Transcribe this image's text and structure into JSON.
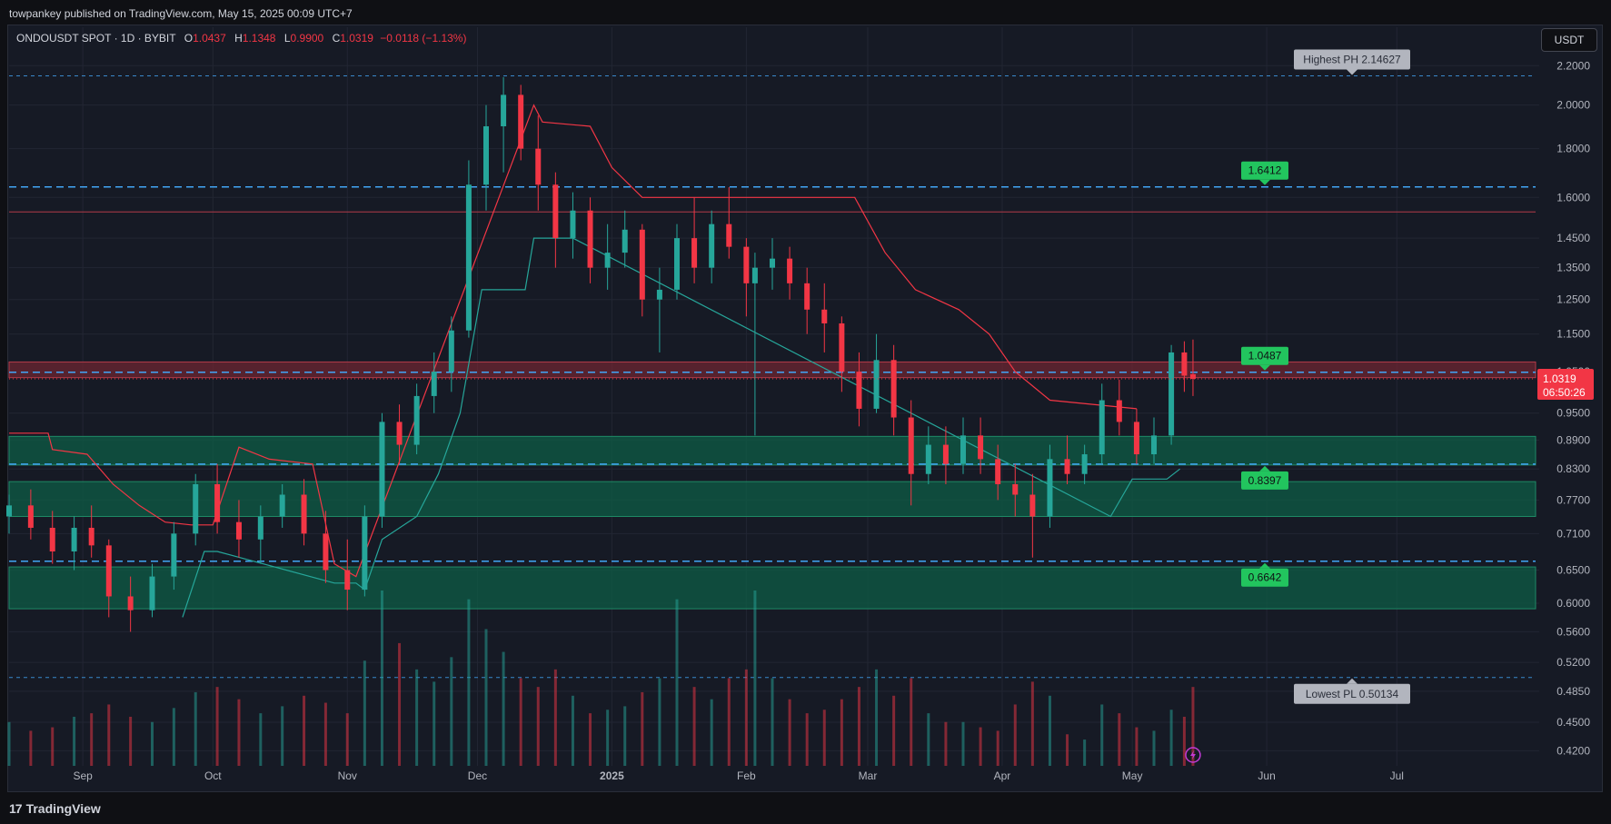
{
  "publisher_text": "towpankey published on TradingView.com, May 15, 2025 00:09 UTC+7",
  "legend": {
    "symbol": "ONDOUSDT SPOT · 1D · BYBIT",
    "o_label": "O",
    "o_value": "1.0437",
    "h_label": "H",
    "h_value": "1.1348",
    "l_label": "L",
    "l_value": "0.9900",
    "c_label": "C",
    "c_value": "1.0319",
    "change": "−0.0118 (−1.13%)"
  },
  "currency_button": "USDT",
  "footer": {
    "logo_mark": "17",
    "brand": "TradingView"
  },
  "colors": {
    "background": "#161a25",
    "up": "#26a69a",
    "down": "#f23645",
    "level_line": "#42a5f5",
    "green_zone": "#0d5c45",
    "red_zone": "#7a2632",
    "green_label": "#22c55e",
    "price_tag": "#f23645"
  },
  "icons": {
    "flash": "lightning-icon"
  },
  "chart_data": {
    "type": "candlestick",
    "symbol": "ONDOUSDT",
    "y_scale": "log",
    "y_ticks": [
      "2.2000",
      "2.0000",
      "1.8000",
      "1.6000",
      "1.4500",
      "1.3500",
      "1.2500",
      "1.1500",
      "1.0500",
      "0.9500",
      "0.8900",
      "0.8300",
      "0.7700",
      "0.7100",
      "0.6500",
      "0.6000",
      "0.5600",
      "0.5200",
      "0.4850",
      "0.4500",
      "0.4200"
    ],
    "x_ticks": [
      {
        "label": "Sep",
        "date": "2024-09-01"
      },
      {
        "label": "Oct",
        "date": "2024-10-01"
      },
      {
        "label": "Nov",
        "date": "2024-11-01"
      },
      {
        "label": "Dec",
        "date": "2024-12-01"
      },
      {
        "label": "2025",
        "date": "2025-01-01"
      },
      {
        "label": "Feb",
        "date": "2025-02-01"
      },
      {
        "label": "Mar",
        "date": "2025-03-01"
      },
      {
        "label": "Apr",
        "date": "2025-04-01"
      },
      {
        "label": "May",
        "date": "2025-05-01"
      },
      {
        "label": "Jun",
        "date": "2025-06-01"
      },
      {
        "label": "Jul",
        "date": "2025-07-01"
      }
    ],
    "x_range": [
      "2024-08-15",
      "2025-08-02"
    ],
    "y_range": [
      0.405,
      2.26
    ],
    "ohlc": [
      [
        "2024-08-15",
        0.74,
        0.78,
        0.71,
        0.76
      ],
      [
        "2024-08-20",
        0.76,
        0.79,
        0.7,
        0.72
      ],
      [
        "2024-08-25",
        0.72,
        0.75,
        0.66,
        0.68
      ],
      [
        "2024-08-30",
        0.68,
        0.74,
        0.65,
        0.72
      ],
      [
        "2024-09-03",
        0.72,
        0.76,
        0.67,
        0.69
      ],
      [
        "2024-09-07",
        0.69,
        0.7,
        0.58,
        0.61
      ],
      [
        "2024-09-12",
        0.61,
        0.64,
        0.56,
        0.59
      ],
      [
        "2024-09-17",
        0.59,
        0.66,
        0.58,
        0.64
      ],
      [
        "2024-09-22",
        0.64,
        0.73,
        0.62,
        0.71
      ],
      [
        "2024-09-27",
        0.71,
        0.82,
        0.69,
        0.8
      ],
      [
        "2024-10-02",
        0.8,
        0.84,
        0.71,
        0.73
      ],
      [
        "2024-10-07",
        0.73,
        0.77,
        0.67,
        0.7
      ],
      [
        "2024-10-12",
        0.7,
        0.76,
        0.66,
        0.74
      ],
      [
        "2024-10-17",
        0.74,
        0.8,
        0.72,
        0.78
      ],
      [
        "2024-10-22",
        0.78,
        0.81,
        0.69,
        0.71
      ],
      [
        "2024-10-27",
        0.71,
        0.75,
        0.63,
        0.65
      ],
      [
        "2024-11-01",
        0.65,
        0.7,
        0.59,
        0.62
      ],
      [
        "2024-11-05",
        0.62,
        0.76,
        0.61,
        0.74
      ],
      [
        "2024-11-09",
        0.74,
        0.95,
        0.72,
        0.93
      ],
      [
        "2024-11-13",
        0.93,
        0.97,
        0.84,
        0.88
      ],
      [
        "2024-11-17",
        0.88,
        1.02,
        0.86,
        0.99
      ],
      [
        "2024-11-21",
        0.99,
        1.1,
        0.95,
        1.05
      ],
      [
        "2024-11-25",
        1.05,
        1.2,
        1.0,
        1.16
      ],
      [
        "2024-11-29",
        1.16,
        1.75,
        1.14,
        1.65
      ],
      [
        "2024-12-03",
        1.65,
        2.0,
        1.55,
        1.9
      ],
      [
        "2024-12-07",
        1.9,
        2.14,
        1.7,
        2.05
      ],
      [
        "2024-12-11",
        2.05,
        2.1,
        1.75,
        1.8
      ],
      [
        "2024-12-15",
        1.8,
        1.95,
        1.55,
        1.65
      ],
      [
        "2024-12-19",
        1.65,
        1.7,
        1.35,
        1.45
      ],
      [
        "2024-12-23",
        1.45,
        1.62,
        1.38,
        1.55
      ],
      [
        "2024-12-27",
        1.55,
        1.6,
        1.3,
        1.35
      ],
      [
        "2024-12-31",
        1.35,
        1.5,
        1.28,
        1.4
      ],
      [
        "2025-01-04",
        1.4,
        1.55,
        1.35,
        1.48
      ],
      [
        "2025-01-08",
        1.48,
        1.5,
        1.2,
        1.25
      ],
      [
        "2025-01-12",
        1.25,
        1.35,
        1.1,
        1.28
      ],
      [
        "2025-01-16",
        1.28,
        1.5,
        1.25,
        1.45
      ],
      [
        "2025-01-20",
        1.45,
        1.6,
        1.3,
        1.35
      ],
      [
        "2025-01-24",
        1.35,
        1.55,
        1.3,
        1.5
      ],
      [
        "2025-01-28",
        1.5,
        1.64,
        1.38,
        1.42
      ],
      [
        "2025-02-01",
        1.42,
        1.45,
        1.2,
        1.3
      ],
      [
        "2025-02-03",
        1.3,
        1.4,
        0.9,
        1.35
      ],
      [
        "2025-02-07",
        1.35,
        1.45,
        1.28,
        1.38
      ],
      [
        "2025-02-11",
        1.38,
        1.42,
        1.25,
        1.3
      ],
      [
        "2025-02-15",
        1.3,
        1.35,
        1.15,
        1.22
      ],
      [
        "2025-02-19",
        1.22,
        1.3,
        1.1,
        1.18
      ],
      [
        "2025-02-23",
        1.18,
        1.2,
        1.0,
        1.05
      ],
      [
        "2025-02-27",
        1.05,
        1.1,
        0.92,
        0.96
      ],
      [
        "2025-03-03",
        0.96,
        1.15,
        0.95,
        1.08
      ],
      [
        "2025-03-07",
        1.08,
        1.12,
        0.9,
        0.94
      ],
      [
        "2025-03-11",
        0.94,
        0.98,
        0.76,
        0.82
      ],
      [
        "2025-03-15",
        0.82,
        0.92,
        0.8,
        0.88
      ],
      [
        "2025-03-19",
        0.88,
        0.92,
        0.8,
        0.84
      ],
      [
        "2025-03-23",
        0.84,
        0.94,
        0.82,
        0.9
      ],
      [
        "2025-03-27",
        0.9,
        0.94,
        0.82,
        0.85
      ],
      [
        "2025-03-31",
        0.85,
        0.88,
        0.77,
        0.8
      ],
      [
        "2025-04-04",
        0.8,
        0.84,
        0.74,
        0.78
      ],
      [
        "2025-04-08",
        0.78,
        0.82,
        0.67,
        0.74
      ],
      [
        "2025-04-12",
        0.74,
        0.88,
        0.72,
        0.85
      ],
      [
        "2025-04-16",
        0.85,
        0.9,
        0.8,
        0.82
      ],
      [
        "2025-04-20",
        0.82,
        0.88,
        0.8,
        0.86
      ],
      [
        "2025-04-24",
        0.86,
        1.02,
        0.84,
        0.98
      ],
      [
        "2025-04-28",
        0.98,
        1.03,
        0.9,
        0.93
      ],
      [
        "2025-05-02",
        0.93,
        0.96,
        0.84,
        0.86
      ],
      [
        "2025-05-06",
        0.86,
        0.94,
        0.84,
        0.9
      ],
      [
        "2025-05-10",
        0.9,
        1.12,
        0.88,
        1.1
      ],
      [
        "2025-05-13",
        1.1,
        1.13,
        1.0,
        1.04
      ],
      [
        "2025-05-15",
        1.0437,
        1.1348,
        0.99,
        1.0319
      ]
    ],
    "volume": [
      [
        "2024-08-15",
        0.25
      ],
      [
        "2024-08-20",
        0.2
      ],
      [
        "2024-08-25",
        0.22
      ],
      [
        "2024-08-30",
        0.28
      ],
      [
        "2024-09-03",
        0.3
      ],
      [
        "2024-09-07",
        0.35
      ],
      [
        "2024-09-12",
        0.28
      ],
      [
        "2024-09-17",
        0.25
      ],
      [
        "2024-09-22",
        0.33
      ],
      [
        "2024-09-27",
        0.42
      ],
      [
        "2024-10-02",
        0.45
      ],
      [
        "2024-10-07",
        0.38
      ],
      [
        "2024-10-12",
        0.3
      ],
      [
        "2024-10-17",
        0.34
      ],
      [
        "2024-10-22",
        0.4
      ],
      [
        "2024-10-27",
        0.36
      ],
      [
        "2024-11-01",
        0.3
      ],
      [
        "2024-11-05",
        0.6
      ],
      [
        "2024-11-09",
        1.0
      ],
      [
        "2024-11-13",
        0.7
      ],
      [
        "2024-11-17",
        0.55
      ],
      [
        "2024-11-21",
        0.48
      ],
      [
        "2024-11-25",
        0.62
      ],
      [
        "2024-11-29",
        0.95
      ],
      [
        "2024-12-03",
        0.78
      ],
      [
        "2024-12-07",
        0.65
      ],
      [
        "2024-12-11",
        0.5
      ],
      [
        "2024-12-15",
        0.45
      ],
      [
        "2024-12-19",
        0.55
      ],
      [
        "2024-12-23",
        0.4
      ],
      [
        "2024-12-27",
        0.3
      ],
      [
        "2024-12-31",
        0.32
      ],
      [
        "2025-01-04",
        0.34
      ],
      [
        "2025-01-08",
        0.42
      ],
      [
        "2025-01-12",
        0.5
      ],
      [
        "2025-01-16",
        0.95
      ],
      [
        "2025-01-20",
        0.45
      ],
      [
        "2025-01-24",
        0.38
      ],
      [
        "2025-01-28",
        0.5
      ],
      [
        "2025-02-01",
        0.55
      ],
      [
        "2025-02-03",
        1.0
      ],
      [
        "2025-02-07",
        0.5
      ],
      [
        "2025-02-11",
        0.38
      ],
      [
        "2025-02-15",
        0.3
      ],
      [
        "2025-02-19",
        0.32
      ],
      [
        "2025-02-23",
        0.38
      ],
      [
        "2025-02-27",
        0.45
      ],
      [
        "2025-03-03",
        0.55
      ],
      [
        "2025-03-07",
        0.4
      ],
      [
        "2025-03-11",
        0.5
      ],
      [
        "2025-03-15",
        0.3
      ],
      [
        "2025-03-19",
        0.25
      ],
      [
        "2025-03-23",
        0.25
      ],
      [
        "2025-03-27",
        0.22
      ],
      [
        "2025-03-31",
        0.2
      ],
      [
        "2025-04-04",
        0.35
      ],
      [
        "2025-04-08",
        0.48
      ],
      [
        "2025-04-12",
        0.4
      ],
      [
        "2025-04-16",
        0.18
      ],
      [
        "2025-04-20",
        0.15
      ],
      [
        "2025-04-24",
        0.35
      ],
      [
        "2025-04-28",
        0.3
      ],
      [
        "2025-05-02",
        0.22
      ],
      [
        "2025-05-06",
        0.2
      ],
      [
        "2025-05-10",
        0.32
      ],
      [
        "2025-05-13",
        0.28
      ],
      [
        "2025-05-15",
        0.45
      ]
    ],
    "supertrend_bear": [
      [
        "2024-08-15",
        0.905
      ],
      [
        "2024-08-24",
        0.905
      ],
      [
        "2024-08-25",
        0.87
      ],
      [
        "2024-09-02",
        0.86
      ],
      [
        "2024-09-08",
        0.8
      ],
      [
        "2024-09-14",
        0.76
      ],
      [
        "2024-09-20",
        0.73
      ],
      [
        "2024-09-26",
        0.725
      ],
      [
        "2024-10-01",
        0.725
      ],
      [
        "2024-10-07",
        0.875
      ],
      [
        "2024-10-14",
        0.85
      ],
      [
        "2024-10-24",
        0.84
      ],
      [
        "2024-10-29",
        0.66
      ],
      [
        "2024-11-03",
        0.64
      ],
      [
        "2024-12-14",
        2.0
      ],
      [
        "2024-12-16",
        1.92
      ],
      [
        "2024-12-27",
        1.9
      ],
      [
        "2025-01-01",
        1.72
      ],
      [
        "2025-01-08",
        1.6
      ],
      [
        "2025-02-26",
        1.6
      ],
      [
        "2025-03-05",
        1.4
      ],
      [
        "2025-03-12",
        1.28
      ],
      [
        "2025-03-22",
        1.22
      ],
      [
        "2025-03-29",
        1.15
      ],
      [
        "2025-04-04",
        1.05
      ],
      [
        "2025-04-12",
        0.98
      ],
      [
        "2025-05-02",
        0.96
      ]
    ],
    "supertrend_bull": [
      [
        "2024-09-24",
        0.58
      ],
      [
        "2024-09-29",
        0.68
      ],
      [
        "2024-10-02",
        0.68
      ],
      [
        "2024-10-29",
        0.63
      ],
      [
        "2024-11-03",
        0.63
      ],
      [
        "2024-11-05",
        0.62
      ],
      [
        "2024-11-09",
        0.7
      ],
      [
        "2024-11-17",
        0.74
      ],
      [
        "2024-11-22",
        0.82
      ],
      [
        "2024-11-27",
        0.95
      ],
      [
        "2024-12-02",
        1.28
      ],
      [
        "2024-12-12",
        1.28
      ],
      [
        "2024-12-14",
        1.45
      ],
      [
        "2024-12-23",
        1.45
      ],
      [
        "2025-04-26",
        0.74
      ],
      [
        "2025-05-01",
        0.81
      ],
      [
        "2025-05-09",
        0.81
      ],
      [
        "2025-05-12",
        0.83
      ]
    ],
    "zones": [
      {
        "kind": "resistance",
        "top": 1.075,
        "bottom": 1.035
      },
      {
        "kind": "support",
        "top": 0.898,
        "bottom": 0.838
      },
      {
        "kind": "support",
        "top": 0.805,
        "bottom": 0.74
      },
      {
        "kind": "support",
        "top": 0.655,
        "bottom": 0.592
      }
    ],
    "levels": [
      {
        "value": 2.14627,
        "label": "Highest PH 2.14627",
        "kind": "ph"
      },
      {
        "value": 1.6412,
        "label": "1.6412",
        "kind": "green"
      },
      {
        "value": 1.0487,
        "label": "1.0487",
        "kind": "green"
      },
      {
        "value": 0.8397,
        "label": "0.8397",
        "kind": "green"
      },
      {
        "value": 0.6642,
        "label": "0.6642",
        "kind": "green"
      },
      {
        "value": 0.50134,
        "label": "Lowest PL 0.50134",
        "kind": "pl"
      }
    ],
    "red_line": 1.545,
    "last_price": {
      "value": 1.0319,
      "price_text": "1.0319",
      "timer_text": "06:50:26"
    }
  }
}
